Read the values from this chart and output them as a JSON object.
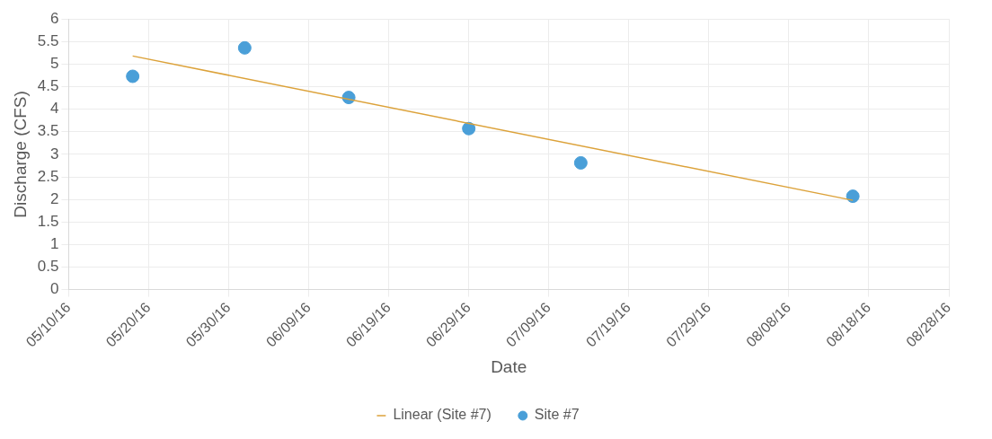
{
  "chart_data": {
    "type": "scatter",
    "xlabel": "Date",
    "ylabel": "Discharge (CFS)",
    "xlim": [
      "--05-10",
      "--08-28"
    ],
    "xticks": [
      {
        "value": "--05-10",
        "label": "05/10/16"
      },
      {
        "value": "--05-20",
        "label": "05/20/16"
      },
      {
        "value": "--05-30",
        "label": "05/30/16"
      },
      {
        "value": "--06-09",
        "label": "06/09/16"
      },
      {
        "value": "--06-19",
        "label": "06/19/16"
      },
      {
        "value": "--06-29",
        "label": "06/29/16"
      },
      {
        "value": "--07-09",
        "label": "07/09/16"
      },
      {
        "value": "--07-19",
        "label": "07/19/16"
      },
      {
        "value": "--07-29",
        "label": "07/29/16"
      },
      {
        "value": "--08-08",
        "label": "08/08/16"
      },
      {
        "value": "--08-18",
        "label": "08/18/16"
      },
      {
        "value": "--08-28",
        "label": "08/28/16"
      }
    ],
    "ylim": [
      0,
      6
    ],
    "yticks": [
      0,
      0.5,
      1,
      1.5,
      2,
      2.5,
      3,
      3.5,
      4,
      4.5,
      5,
      5.5,
      6
    ],
    "grid": true,
    "legend": "bottom",
    "series": [
      {
        "name": "Site #7",
        "type": "scatter",
        "marker": "circle",
        "color": "#4a9fd8",
        "x": [
          "--05-18",
          "--06-01",
          "--06-14",
          "--06-29",
          "--07-13",
          "--08-16"
        ],
        "values": [
          4.73,
          5.36,
          4.26,
          3.57,
          2.81,
          2.07
        ]
      },
      {
        "name": "Linear (Site #7)",
        "type": "line",
        "marker": "none",
        "color": "#dca23a",
        "x": [
          "--05-18",
          "--08-16"
        ],
        "values": [
          5.18,
          1.98
        ]
      }
    ]
  }
}
